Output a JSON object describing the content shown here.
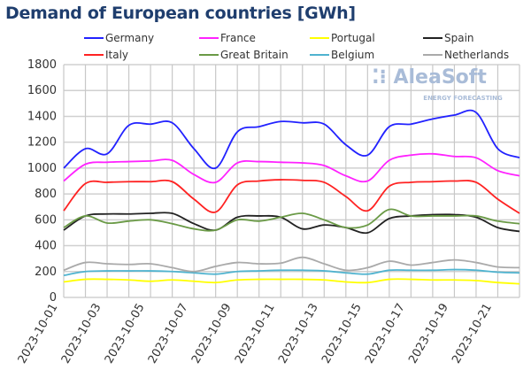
{
  "chart_data": {
    "type": "line",
    "title": "Demand of European countries [GWh]",
    "xlabel": "",
    "ylabel": "",
    "ylim": [
      0,
      1800
    ],
    "yticks": [
      0,
      200,
      400,
      600,
      800,
      1000,
      1200,
      1400,
      1600,
      1800
    ],
    "x": [
      "2023-10-01",
      "2023-10-02",
      "2023-10-03",
      "2023-10-04",
      "2023-10-05",
      "2023-10-06",
      "2023-10-07",
      "2023-10-08",
      "2023-10-09",
      "2023-10-10",
      "2023-10-11",
      "2023-10-12",
      "2023-10-13",
      "2023-10-14",
      "2023-10-15",
      "2023-10-16",
      "2023-10-17",
      "2023-10-18",
      "2023-10-19",
      "2023-10-20",
      "2023-10-21",
      "2023-10-22"
    ],
    "xtick_labels": [
      "2023-10-01",
      "2023-10-03",
      "2023-10-05",
      "2023-10-07",
      "2023-10-09",
      "2023-10-11",
      "2023-10-13",
      "2023-10-15",
      "2023-10-17",
      "2023-10-19",
      "2023-10-21"
    ],
    "grid": true,
    "legend_placement": "top",
    "watermark": {
      "brand": "AleaSoft",
      "tagline": "ENERGY FORECASTING"
    },
    "series": [
      {
        "name": "Germany",
        "color": "#2222ff",
        "values": [
          1000,
          1150,
          1110,
          1330,
          1340,
          1350,
          1150,
          1000,
          1280,
          1320,
          1360,
          1350,
          1340,
          1180,
          1100,
          1320,
          1340,
          1380,
          1410,
          1430,
          1150,
          1080
        ]
      },
      {
        "name": "France",
        "color": "#ff22ff",
        "values": [
          900,
          1030,
          1045,
          1050,
          1055,
          1060,
          950,
          890,
          1040,
          1050,
          1045,
          1040,
          1020,
          940,
          900,
          1060,
          1100,
          1110,
          1090,
          1080,
          980,
          940
        ]
      },
      {
        "name": "Portugal",
        "color": "#ffff00",
        "values": [
          120,
          140,
          140,
          135,
          125,
          135,
          125,
          115,
          135,
          140,
          140,
          140,
          135,
          120,
          115,
          140,
          140,
          135,
          135,
          130,
          115,
          105
        ]
      },
      {
        "name": "Spain",
        "color": "#222222",
        "values": [
          520,
          630,
          645,
          645,
          650,
          650,
          570,
          520,
          620,
          630,
          620,
          530,
          560,
          540,
          500,
          610,
          630,
          640,
          640,
          620,
          540,
          510
        ]
      },
      {
        "name": "Italy",
        "color": "#ff2222",
        "values": [
          670,
          880,
          890,
          895,
          895,
          895,
          760,
          660,
          870,
          900,
          910,
          905,
          890,
          780,
          670,
          860,
          890,
          895,
          900,
          890,
          760,
          650
        ]
      },
      {
        "name": "Great Britain",
        "color": "#6a9a46",
        "values": [
          540,
          630,
          575,
          590,
          600,
          570,
          530,
          520,
          600,
          590,
          620,
          650,
          600,
          540,
          560,
          680,
          630,
          630,
          630,
          630,
          590,
          570
        ]
      },
      {
        "name": "Belgium",
        "color": "#4fb3cf",
        "values": [
          170,
          200,
          205,
          205,
          205,
          200,
          190,
          180,
          200,
          205,
          210,
          210,
          205,
          190,
          180,
          210,
          210,
          210,
          215,
          210,
          195,
          190
        ]
      },
      {
        "name": "Netherlands",
        "color": "#aaaaaa",
        "values": [
          210,
          270,
          260,
          255,
          260,
          230,
          200,
          240,
          270,
          260,
          265,
          310,
          260,
          210,
          230,
          280,
          250,
          270,
          290,
          270,
          235,
          230
        ]
      }
    ]
  }
}
